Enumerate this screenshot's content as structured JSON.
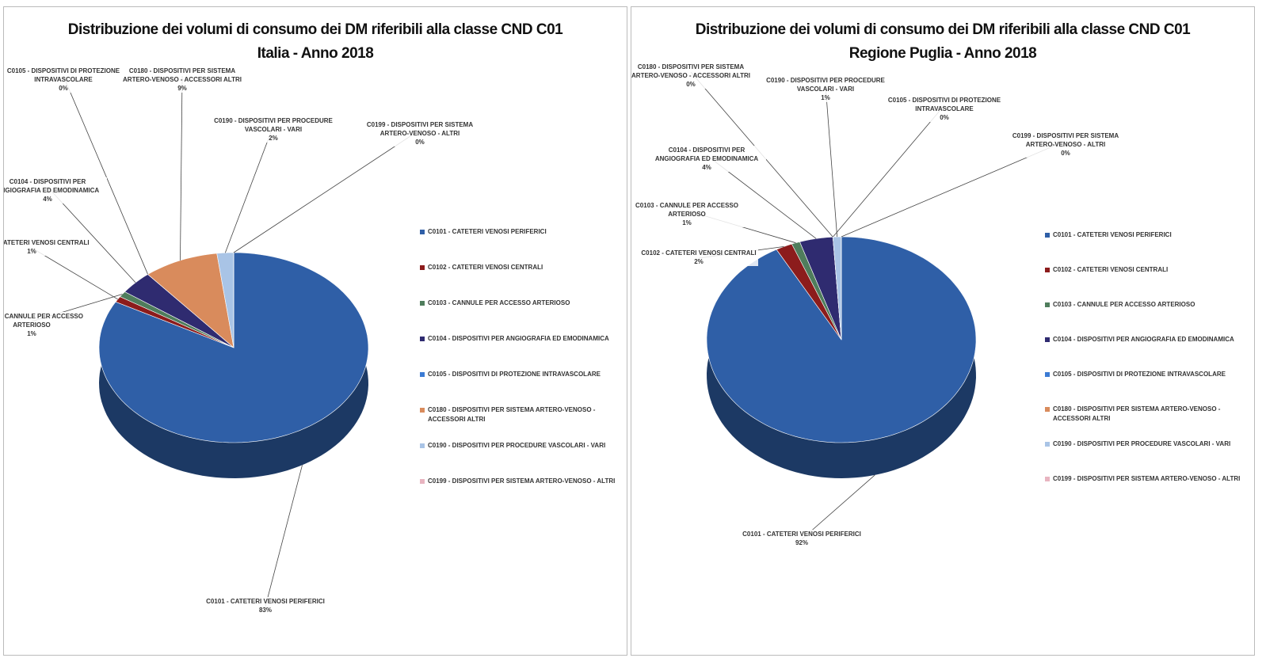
{
  "chart_data": [
    {
      "type": "pie",
      "title": "Distribuzione dei volumi di consumo dei DM riferibili alla classe CND C01",
      "subtitle": "Italia - Anno 2018",
      "categories": [
        "C0101 - CATETERI VENOSI PERIFERICI",
        "C0102 - CATETERI VENOSI CENTRALI",
        "C0103 - CANNULE PER ACCESSO ARTERIOSO",
        "C0104 - DISPOSITIVI PER ANGIOGRAFIA ED EMODINAMICA",
        "C0105 - DISPOSITIVI DI PROTEZIONE INTRAVASCOLARE",
        "C0180 - DISPOSITIVI PER SISTEMA ARTERO-VENOSO - ACCESSORI ALTRI",
        "C0190 - DISPOSITIVI PER PROCEDURE VASCOLARI - VARI",
        "C0199 - DISPOSITIVI PER SISTEMA ARTERO-VENOSO - ALTRI"
      ],
      "values": [
        83,
        1,
        1,
        4,
        0,
        9,
        2,
        0
      ],
      "value_labels": [
        "83%",
        "1%",
        "1%",
        "4%",
        "0%",
        "9%",
        "2%",
        "0%"
      ],
      "colors": [
        "#2f5fa7",
        "#8c1c1c",
        "#4f7d5c",
        "#2f2b70",
        "#3b7bd4",
        "#d98b5c",
        "#a9c4e6",
        "#e8b4c0"
      ]
    },
    {
      "type": "pie",
      "title": "Distribuzione dei volumi di consumo dei DM riferibili alla classe CND C01",
      "subtitle": "Regione Puglia - Anno 2018",
      "categories": [
        "C0101 - CATETERI VENOSI PERIFERICI",
        "C0102 - CATETERI VENOSI CENTRALI",
        "C0103 - CANNULE PER ACCESSO ARTERIOSO",
        "C0104 - DISPOSITIVI PER ANGIOGRAFIA ED EMODINAMICA",
        "C0105 - DISPOSITIVI DI PROTEZIONE INTRAVASCOLARE",
        "C0180 - DISPOSITIVI PER SISTEMA ARTERO-VENOSO - ACCESSORI ALTRI",
        "C0190 - DISPOSITIVI PER PROCEDURE VASCOLARI - VARI",
        "C0199 - DISPOSITIVI PER SISTEMA ARTERO-VENOSO - ALTRI"
      ],
      "values": [
        92,
        2,
        1,
        4,
        0,
        0,
        1,
        0
      ],
      "value_labels": [
        "92%",
        "2%",
        "1%",
        "4%",
        "0%",
        "0%",
        "1%",
        "0%"
      ],
      "colors": [
        "#2f5fa7",
        "#8c1c1c",
        "#4f7d5c",
        "#2f2b70",
        "#3b7bd4",
        "#d98b5c",
        "#a9c4e6",
        "#e8b4c0"
      ]
    }
  ]
}
